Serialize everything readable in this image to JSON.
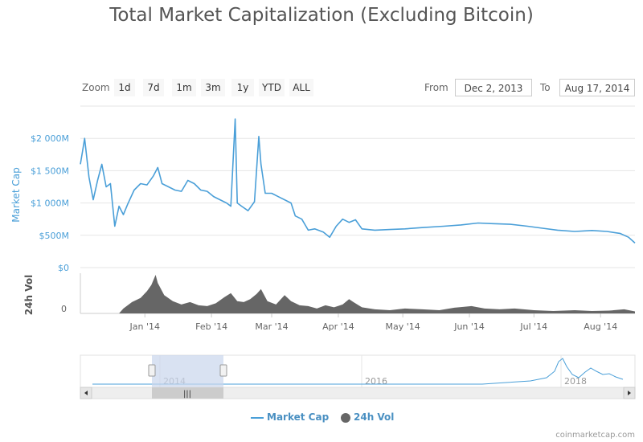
{
  "chart_data": {
    "type": "area",
    "title": "Total Market Capitalization (Excluding Bitcoin)",
    "y_axis_label": "Market Cap",
    "y_ticks": [
      "$2 000M",
      "$1 500M",
      "$1 000M",
      "$500M",
      "$0"
    ],
    "ylim": [
      0,
      2500
    ],
    "vol_axis_label": "24h Vol",
    "vol_ticks": [
      "0"
    ],
    "x_ticks": [
      "Jan '14",
      "Feb '14",
      "Mar '14",
      "Apr '14",
      "May '14",
      "Jun '14",
      "Jul '14",
      "Aug '14"
    ],
    "navigator_ticks": [
      "2014",
      "2016",
      "2018"
    ],
    "series": [
      {
        "name": "Market Cap",
        "color": "#4a9fd8",
        "points": [
          [
            "2013-12-02",
            1600
          ],
          [
            "2013-12-03",
            1800
          ],
          [
            "2013-12-04",
            2000
          ],
          [
            "2013-12-06",
            1400
          ],
          [
            "2013-12-08",
            1050
          ],
          [
            "2013-12-10",
            1350
          ],
          [
            "2013-12-12",
            1600
          ],
          [
            "2013-12-14",
            1250
          ],
          [
            "2013-12-16",
            1300
          ],
          [
            "2013-12-18",
            640
          ],
          [
            "2013-12-20",
            950
          ],
          [
            "2013-12-22",
            820
          ],
          [
            "2013-12-24",
            980
          ],
          [
            "2013-12-27",
            1200
          ],
          [
            "2013-12-30",
            1300
          ],
          [
            "2014-01-02",
            1280
          ],
          [
            "2014-01-05",
            1420
          ],
          [
            "2014-01-07",
            1550
          ],
          [
            "2014-01-09",
            1300
          ],
          [
            "2014-01-12",
            1250
          ],
          [
            "2014-01-15",
            1200
          ],
          [
            "2014-01-18",
            1180
          ],
          [
            "2014-01-21",
            1350
          ],
          [
            "2014-01-24",
            1300
          ],
          [
            "2014-01-27",
            1200
          ],
          [
            "2014-01-30",
            1180
          ],
          [
            "2014-02-02",
            1100
          ],
          [
            "2014-02-05",
            1050
          ],
          [
            "2014-02-08",
            1000
          ],
          [
            "2014-02-10",
            950
          ],
          [
            "2014-02-12",
            2300
          ],
          [
            "2014-02-13",
            1000
          ],
          [
            "2014-02-15",
            950
          ],
          [
            "2014-02-18",
            880
          ],
          [
            "2014-02-21",
            1020
          ],
          [
            "2014-02-23",
            2030
          ],
          [
            "2014-02-24",
            1600
          ],
          [
            "2014-02-26",
            1150
          ],
          [
            "2014-03-01",
            1150
          ],
          [
            "2014-03-04",
            1100
          ],
          [
            "2014-03-07",
            1050
          ],
          [
            "2014-03-10",
            1000
          ],
          [
            "2014-03-12",
            800
          ],
          [
            "2014-03-15",
            750
          ],
          [
            "2014-03-18",
            580
          ],
          [
            "2014-03-21",
            600
          ],
          [
            "2014-03-25",
            550
          ],
          [
            "2014-03-28",
            470
          ],
          [
            "2014-03-31",
            640
          ],
          [
            "2014-04-03",
            750
          ],
          [
            "2014-04-06",
            700
          ],
          [
            "2014-04-09",
            740
          ],
          [
            "2014-04-12",
            600
          ],
          [
            "2014-04-18",
            580
          ],
          [
            "2014-04-25",
            590
          ],
          [
            "2014-05-02",
            600
          ],
          [
            "2014-05-10",
            620
          ],
          [
            "2014-05-20",
            640
          ],
          [
            "2014-05-28",
            660
          ],
          [
            "2014-06-05",
            690
          ],
          [
            "2014-06-12",
            680
          ],
          [
            "2014-06-20",
            670
          ],
          [
            "2014-06-28",
            640
          ],
          [
            "2014-07-05",
            610
          ],
          [
            "2014-07-12",
            580
          ],
          [
            "2014-07-20",
            560
          ],
          [
            "2014-07-28",
            575
          ],
          [
            "2014-08-04",
            560
          ],
          [
            "2014-08-10",
            530
          ],
          [
            "2014-08-14",
            470
          ],
          [
            "2014-08-17",
            380
          ]
        ]
      },
      {
        "name": "24h Vol",
        "color": "#666666",
        "points": [
          [
            "2013-12-02",
            0
          ],
          [
            "2013-12-20",
            0
          ],
          [
            "2013-12-22",
            12
          ],
          [
            "2013-12-26",
            28
          ],
          [
            "2013-12-30",
            38
          ],
          [
            "2014-01-02",
            55
          ],
          [
            "2014-01-04",
            70
          ],
          [
            "2014-01-06",
            95
          ],
          [
            "2014-01-07",
            75
          ],
          [
            "2014-01-10",
            45
          ],
          [
            "2014-01-14",
            30
          ],
          [
            "2014-01-18",
            22
          ],
          [
            "2014-01-22",
            28
          ],
          [
            "2014-01-26",
            20
          ],
          [
            "2014-01-30",
            18
          ],
          [
            "2014-02-03",
            25
          ],
          [
            "2014-02-07",
            40
          ],
          [
            "2014-02-10",
            50
          ],
          [
            "2014-02-13",
            30
          ],
          [
            "2014-02-16",
            28
          ],
          [
            "2014-02-19",
            35
          ],
          [
            "2014-02-22",
            48
          ],
          [
            "2014-02-24",
            60
          ],
          [
            "2014-02-27",
            30
          ],
          [
            "2014-03-03",
            22
          ],
          [
            "2014-03-07",
            45
          ],
          [
            "2014-03-10",
            30
          ],
          [
            "2014-03-14",
            20
          ],
          [
            "2014-03-18",
            18
          ],
          [
            "2014-03-22",
            12
          ],
          [
            "2014-03-26",
            20
          ],
          [
            "2014-03-30",
            15
          ],
          [
            "2014-04-03",
            22
          ],
          [
            "2014-04-06",
            35
          ],
          [
            "2014-04-08",
            28
          ],
          [
            "2014-04-12",
            15
          ],
          [
            "2014-04-18",
            10
          ],
          [
            "2014-04-25",
            8
          ],
          [
            "2014-05-02",
            12
          ],
          [
            "2014-05-10",
            10
          ],
          [
            "2014-05-18",
            8
          ],
          [
            "2014-05-25",
            14
          ],
          [
            "2014-06-02",
            18
          ],
          [
            "2014-06-08",
            12
          ],
          [
            "2014-06-15",
            10
          ],
          [
            "2014-06-22",
            12
          ],
          [
            "2014-07-01",
            8
          ],
          [
            "2014-07-10",
            6
          ],
          [
            "2014-07-20",
            8
          ],
          [
            "2014-07-28",
            6
          ],
          [
            "2014-08-05",
            7
          ],
          [
            "2014-08-12",
            10
          ],
          [
            "2014-08-17",
            5
          ]
        ]
      }
    ]
  },
  "zoom": {
    "label": "Zoom",
    "buttons": [
      "1d",
      "7d",
      "1m",
      "3m",
      "1y",
      "YTD",
      "ALL"
    ]
  },
  "range": {
    "from_label": "From",
    "from_value": "Dec 2, 2013",
    "to_label": "To",
    "to_value": "Aug 17, 2014"
  },
  "credits": "coinmarketcap.com"
}
